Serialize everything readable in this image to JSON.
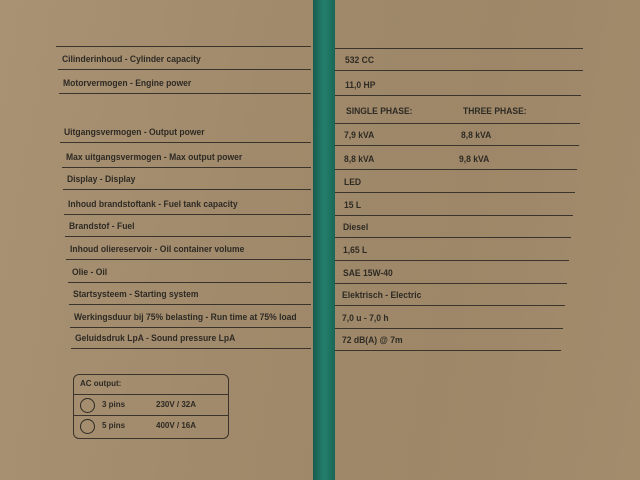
{
  "left_rows": [
    "Cilinderinhoud - Cylinder capacity",
    "Motorvermogen - Engine power",
    "Uitgangsvermogen - Output power",
    "Max uitgangsvermogen - Max output power",
    "Display - Display",
    "Inhoud brandstoftank - Fuel tank capacity",
    "Brandstof - Fuel",
    "Inhoud oliereservoir - Oil container volume",
    "Olie - Oil",
    "Startsysteem - Starting system",
    "Werkingsduur bij 75% belasting - Run time at 75% load",
    "Geluidsdruk LpA - Sound pressure LpA"
  ],
  "phase_headers": {
    "single": "SINGLE PHASE:",
    "three": "THREE PHASE:"
  },
  "values": [
    "532 CC",
    "11,0 HP",
    "7,9 kVA",
    "8,8 kVA",
    "LED",
    "15 L",
    "Diesel",
    "1,65 L",
    "SAE 15W-40",
    "Elektrisch - Electric",
    "7,0 u - 7,0 h",
    "72 dB(A) @ 7m"
  ],
  "three_phase_values": [
    "8,8 kVA",
    "9,8 kVA"
  ],
  "ac_output": {
    "title": "AC output:",
    "rows": [
      {
        "pins": "3 pins",
        "rating": "230V / 32A",
        "icon": "3-pin-socket-icon"
      },
      {
        "pins": "5 pins",
        "rating": "400V / 16A",
        "icon": "5-pin-socket-icon"
      }
    ]
  },
  "colors": {
    "cardboard": "#a08a6b",
    "strap": "#1f6f5e",
    "ink": "#2e2a24"
  }
}
